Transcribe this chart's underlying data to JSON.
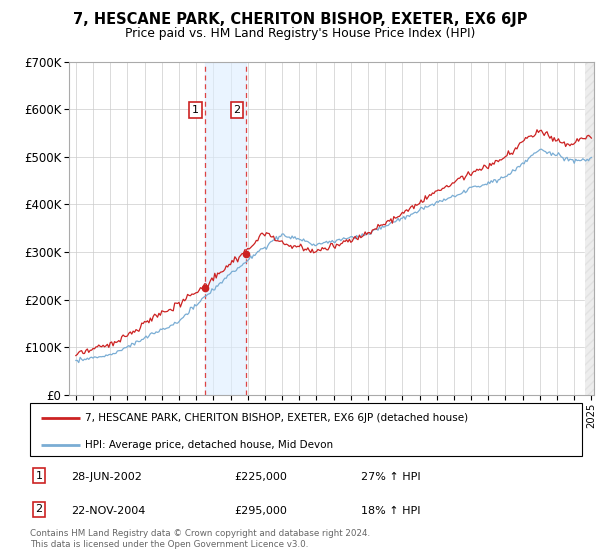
{
  "title": "7, HESCANE PARK, CHERITON BISHOP, EXETER, EX6 6JP",
  "subtitle": "Price paid vs. HM Land Registry's House Price Index (HPI)",
  "legend_line1": "7, HESCANE PARK, CHERITON BISHOP, EXETER, EX6 6JP (detached house)",
  "legend_line2": "HPI: Average price, detached house, Mid Devon",
  "transaction1_date": "28-JUN-2002",
  "transaction1_price": "£225,000",
  "transaction1_hpi": "27% ↑ HPI",
  "transaction2_date": "22-NOV-2004",
  "transaction2_price": "£295,000",
  "transaction2_hpi": "18% ↑ HPI",
  "footer": "Contains HM Land Registry data © Crown copyright and database right 2024.\nThis data is licensed under the Open Government Licence v3.0.",
  "red_color": "#cc2222",
  "blue_color": "#7aadd4",
  "ylim": [
    0,
    700000
  ],
  "yticks": [
    0,
    100000,
    200000,
    300000,
    400000,
    500000,
    600000,
    700000
  ],
  "ytick_labels": [
    "£0",
    "£100K",
    "£200K",
    "£300K",
    "£400K",
    "£500K",
    "£600K",
    "£700K"
  ],
  "start_year": 1995,
  "end_year": 2025,
  "transaction1_year": 2002.5,
  "transaction2_year": 2004.92,
  "transaction1_price_val": 225000,
  "transaction2_price_val": 295000
}
